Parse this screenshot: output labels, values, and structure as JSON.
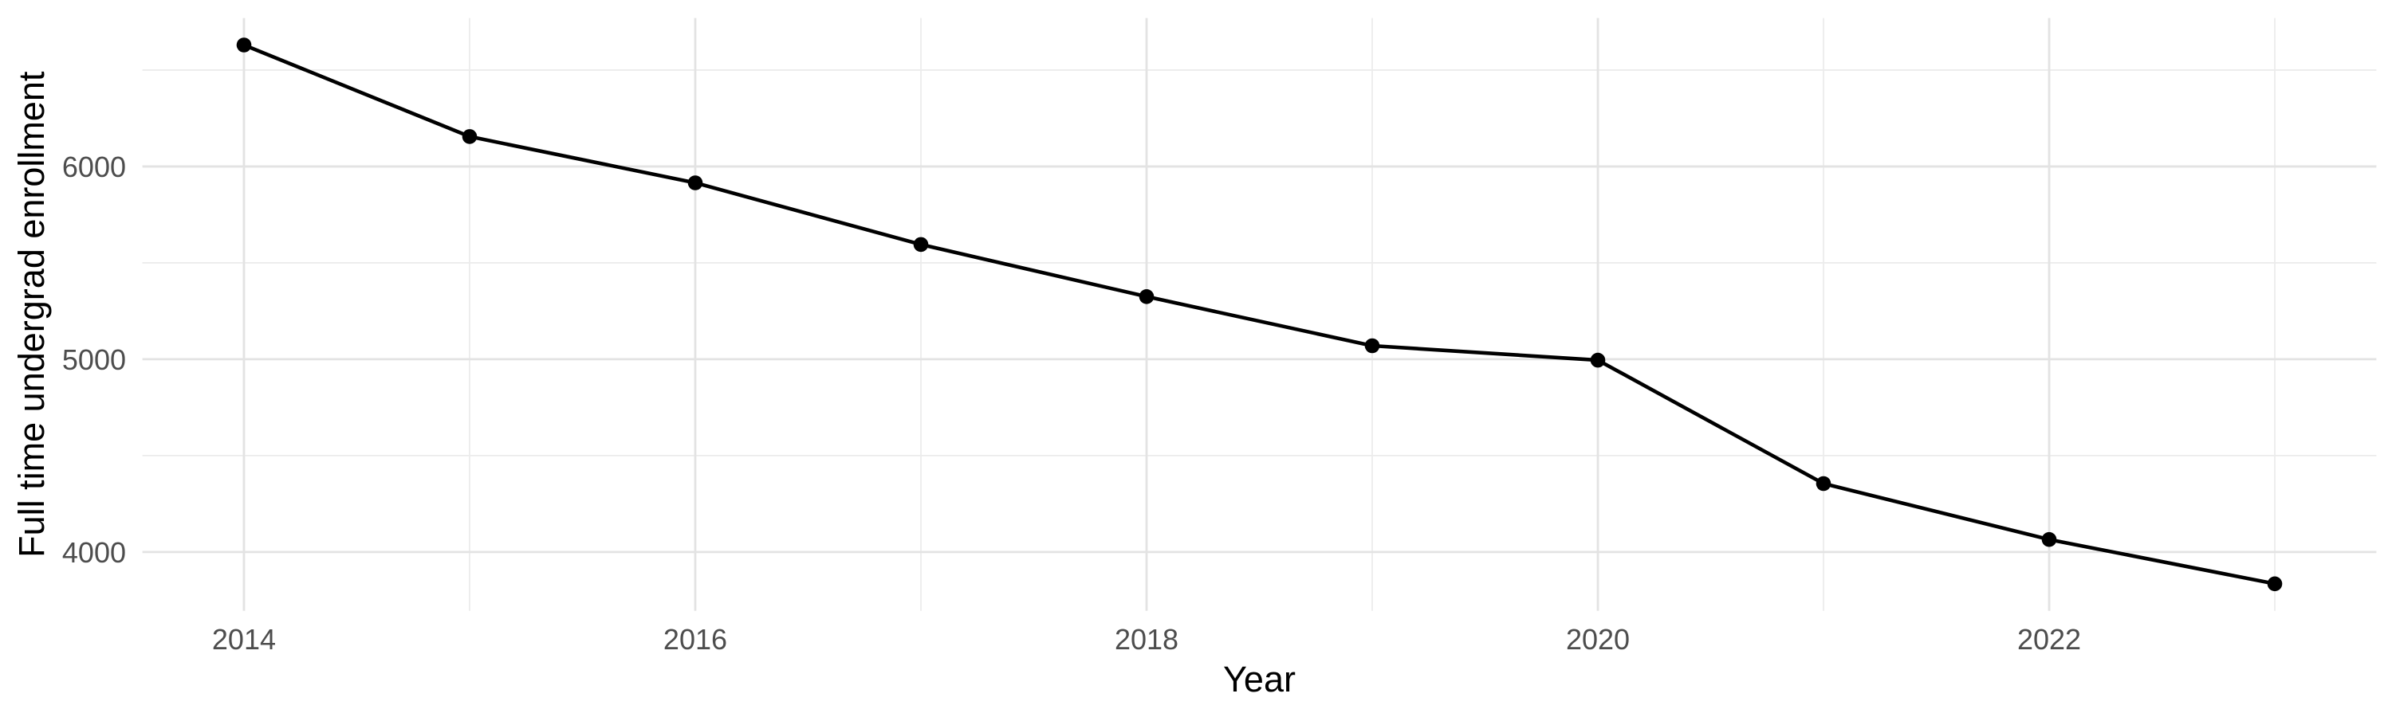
{
  "chart_data": {
    "type": "line",
    "title": "",
    "xlabel": "Year",
    "ylabel": "Full time undergrad enrollment",
    "x": [
      2014,
      2015,
      2016,
      2017,
      2018,
      2019,
      2020,
      2021,
      2022,
      2023
    ],
    "series": [
      {
        "name": "Full time undergrad enrollment",
        "values": [
          6630,
          6155,
          5915,
          5595,
          5325,
          5070,
          4995,
          4355,
          4065,
          3835
        ]
      }
    ],
    "x_tick_labels": [
      "2014",
      "2016",
      "2018",
      "2020",
      "2022"
    ],
    "x_major_gridlines": [
      2014,
      2016,
      2018,
      2020,
      2022
    ],
    "x_minor_gridlines": [
      2015,
      2017,
      2019,
      2021,
      2023
    ],
    "y_tick_labels": [
      "4000",
      "5000",
      "6000"
    ],
    "y_major_gridlines": [
      4000,
      5000,
      6000
    ],
    "y_minor_gridlines": [
      4500,
      5500,
      6500
    ],
    "xlim": [
      2013.55,
      2023.45
    ],
    "ylim": [
      3695,
      6770
    ],
    "grid": true,
    "legend": "none",
    "markers": true,
    "colors": {
      "line": "#000000",
      "point": "#000000",
      "grid_major": "#E3E3E3",
      "grid_minor": "#ECECEC",
      "tick_label": "#4D4D4D",
      "axis_title": "#000000",
      "background": "#FFFFFF"
    }
  }
}
